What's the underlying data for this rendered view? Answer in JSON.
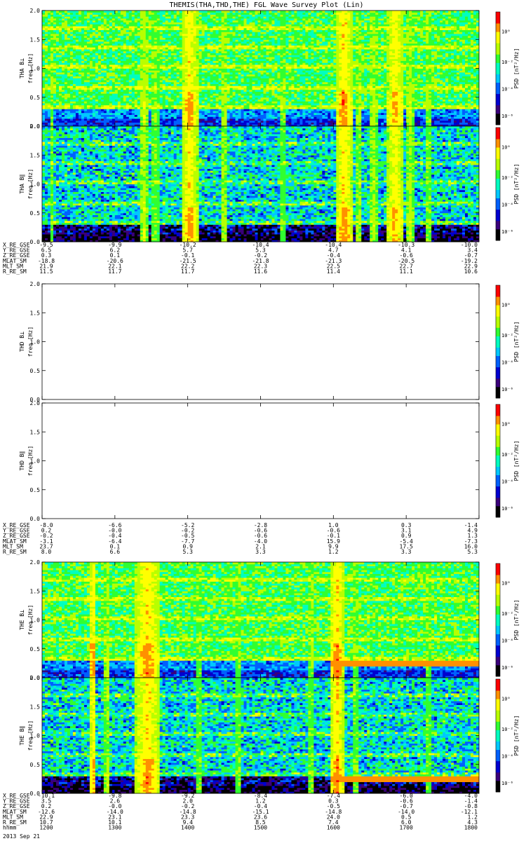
{
  "title": "THEMIS(THA,THD,THE) FGL Wave Survey Plot (Lin)",
  "colors": {
    "colormap": [
      "#000000",
      "#3a007a",
      "#0000d0",
      "#0060ff",
      "#00c8ff",
      "#00ffc0",
      "#30ff30",
      "#b8ff00",
      "#ffff00",
      "#ff9000",
      "#ff0000",
      "#ffffff"
    ],
    "background": "#ffffff"
  },
  "chart_data": {
    "type": "heatmap",
    "x_ticks": [
      "1200",
      "1300",
      "1400",
      "1500",
      "1600",
      "1700",
      "1800"
    ],
    "y_ticks": [
      "0.0",
      "0.5",
      "1.0",
      "1.5",
      "2.0"
    ],
    "ylim": [
      0,
      2.0
    ],
    "colorbar_ticks": [
      "10⁰",
      "10⁻²",
      "10⁻⁴",
      "10⁻⁶"
    ],
    "colorbar_label": "PSD [nT²/Hz]",
    "ylabel_freq": "freq [Hz]",
    "panels": [
      {
        "probe": "THA",
        "label": "THA B⊥",
        "has_data": true
      },
      {
        "probe": "THA",
        "label": "THA B∥",
        "has_data": true
      },
      {
        "probe": "THD",
        "label": "THD B⊥",
        "has_data": false
      },
      {
        "probe": "THD",
        "label": "THD B∥",
        "has_data": false
      },
      {
        "probe": "THE",
        "label": "THE B⊥",
        "has_data": true
      },
      {
        "probe": "THE",
        "label": "THE B∥",
        "has_data": true
      }
    ],
    "ephemeris": [
      {
        "probe": "THA",
        "rows": [
          {
            "label": "X_RE_GSE",
            "values": [
              "-9.5",
              "-9.9",
              "-10.2",
              "-10.4",
              "-10.4",
              "-10.3",
              "-10.0"
            ]
          },
          {
            "label": "Y_RE_GSE",
            "values": [
              "6.5",
              "6.2",
              "5.7",
              "5.3",
              "4.7",
              "4.1",
              "3.4"
            ]
          },
          {
            "label": "Z_RE_GSE",
            "values": [
              "0.3",
              "0.1",
              "-0.1",
              "-0.2",
              "-0.4",
              "-0.6",
              "-0.7"
            ]
          },
          {
            "label": "MLAT_SM",
            "values": [
              "-18.8",
              "-20.6",
              "-21.5",
              "-21.8",
              "-21.3",
              "-20.5",
              "-19.2"
            ]
          },
          {
            "label": "MLT_SM",
            "values": [
              "21.9",
              "22.1",
              "22.2",
              "22.3",
              "22.5",
              "22.7",
              "22.9"
            ]
          },
          {
            "label": "R_RE_SM",
            "values": [
              "11.5",
              "11.7",
              "11.7",
              "11.6",
              "11.4",
              "11.1",
              "10.6"
            ]
          }
        ]
      },
      {
        "probe": "THD",
        "rows": [
          {
            "label": "X_RE_GSE",
            "values": [
              "-8.0",
              "-6.6",
              "-5.2",
              "-2.8",
              "1.0",
              "0.3",
              "-1.4"
            ]
          },
          {
            "label": "Y_RE_GSE",
            "values": [
              "0.2",
              "-0.0",
              "-0.2",
              "-0.6",
              "-0.6",
              "3.1",
              "4.9"
            ]
          },
          {
            "label": "Z_RE_GSE",
            "values": [
              "-0.2",
              "-0.4",
              "-0.5",
              "-0.6",
              "-0.1",
              "0.9",
              "1.3"
            ]
          },
          {
            "label": "MLAT_SM",
            "values": [
              "-3.1",
              "-6.4",
              "-7.7",
              "-4.0",
              "15.9",
              "-5.4",
              "-7.3"
            ]
          },
          {
            "label": "MLT_SM",
            "values": [
              "23.7",
              "0.1",
              "0.9",
              "2.1",
              "9.9",
              "17.5",
              "16.0"
            ]
          },
          {
            "label": "R_RE_SM",
            "values": [
              "8.0",
              "6.6",
              "5.3",
              "3.3",
              "1.2",
              "3.3",
              "5.3"
            ]
          }
        ]
      },
      {
        "probe": "THE",
        "rows": [
          {
            "label": "X_RE_GSE",
            "values": [
              "-10.1",
              "-9.8",
              "-9.2",
              "-8.4",
              "-7.4",
              "-6.0",
              "-4.0"
            ]
          },
          {
            "label": "Y_RE_GSE",
            "values": [
              "3.5",
              "2.6",
              "2.0",
              "1.2",
              "0.3",
              "-0.6",
              "-1.4"
            ]
          },
          {
            "label": "Z_RE_GSE",
            "values": [
              "0.2",
              "-0.0",
              "-0.2",
              "-0.4",
              "-0.5",
              "-0.7",
              "-0.8"
            ]
          },
          {
            "label": "MLAT_SM",
            "values": [
              "-12.6",
              "-14.0",
              "-14.8",
              "-15.1",
              "-14.8",
              "-14.0",
              "-12.1"
            ]
          },
          {
            "label": "MLT_SM",
            "values": [
              "22.9",
              "23.1",
              "23.3",
              "23.6",
              "24.0",
              "0.5",
              "1.2"
            ]
          },
          {
            "label": "R_RE_SM",
            "values": [
              "10.7",
              "10.1",
              "9.4",
              "8.5",
              "7.4",
              "6.0",
              "4.3"
            ]
          },
          {
            "label": "hhmm",
            "values": [
              "1200",
              "1300",
              "1400",
              "1500",
              "1600",
              "1700",
              "1800"
            ]
          }
        ]
      }
    ],
    "date": "2013 Sep 21"
  }
}
